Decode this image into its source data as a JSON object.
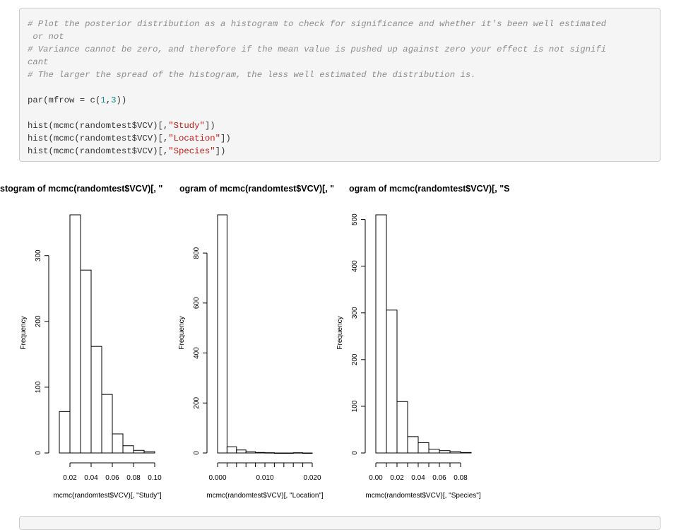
{
  "code": {
    "comment1a": "# Plot the posterior distribution as a histogram to check for significance and whether it's been well estimated",
    "comment1b": " or not",
    "comment2a": "# Variance cannot be zero, and therefore if the mean value is pushed up against zero your effect is not signifi",
    "comment2b": "cant",
    "comment3": "# The larger the spread of the histogram, the less well estimated the distribution is.",
    "par_prefix": "par(mfrow = c(",
    "par_num1": "1",
    "par_comma": ",",
    "par_num2": "3",
    "par_suffix": "))",
    "hist_prefix": "hist(mcmc(randomtest$VCV)[,",
    "hist_suffix": "])",
    "hist_args": [
      "\"Study\"",
      "\"Location\"",
      "\"Species\""
    ]
  },
  "chart_data": [
    {
      "type": "bar",
      "title_visible": "stogram of mcmc(randomtest$VCV)[, \"",
      "xlabel": "mcmc(randomtest$VCV)[, \"Study\"]",
      "ylabel": "Frequency",
      "bin_edges": [
        0.01,
        0.02,
        0.03,
        0.04,
        0.05,
        0.06,
        0.07,
        0.08,
        0.09,
        0.1
      ],
      "values": [
        63,
        362,
        278,
        162,
        89,
        29,
        11,
        4,
        2
      ],
      "xticks": [
        0.02,
        0.04,
        0.06,
        0.08,
        0.1
      ],
      "xtick_labels": [
        "0.02",
        "0.04",
        "0.06",
        "0.08",
        "0.10"
      ],
      "yticks": [
        0,
        100,
        200,
        300
      ],
      "ytick_labels": [
        "0",
        "100",
        "200",
        "300"
      ],
      "ylim": [
        0,
        362
      ]
    },
    {
      "type": "bar",
      "title_visible": "ogram of mcmc(randomtest$VCV)[, \"L",
      "xlabel": "mcmc(randomtest$VCV)[, \"Location\"]",
      "ylabel": "Frequency",
      "bin_edges": [
        0.0,
        0.002,
        0.004,
        0.006,
        0.008,
        0.01,
        0.012,
        0.014,
        0.016,
        0.018,
        0.02
      ],
      "values": [
        953,
        25,
        12,
        5,
        2,
        1,
        0,
        0,
        1,
        0
      ],
      "xticks": [
        0.0,
        0.002,
        0.004,
        0.006,
        0.008,
        0.01,
        0.012,
        0.014,
        0.016,
        0.018,
        0.02
      ],
      "xtick_labels": [
        "0.000",
        "",
        "",
        "",
        "",
        "0.010",
        "",
        "",
        "",
        "",
        "0.020"
      ],
      "yticks": [
        0,
        200,
        400,
        600,
        800
      ],
      "ytick_labels": [
        "0",
        "200",
        "400",
        "600",
        "800"
      ],
      "ylim": [
        0,
        953
      ]
    },
    {
      "type": "bar",
      "title_visible": "ogram of mcmc(randomtest$VCV)[, \"S",
      "xlabel": "mcmc(randomtest$VCV)[, \"Species\"]",
      "ylabel": "Frequency",
      "bin_edges": [
        0.0,
        0.01,
        0.02,
        0.03,
        0.04,
        0.05,
        0.06,
        0.07,
        0.08,
        0.09
      ],
      "values": [
        510,
        306,
        110,
        35,
        22,
        8,
        5,
        3,
        1
      ],
      "xticks": [
        0.0,
        0.01,
        0.02,
        0.03,
        0.04,
        0.05,
        0.06,
        0.07,
        0.08
      ],
      "xtick_labels": [
        "0.00",
        "",
        "0.02",
        "",
        "0.04",
        "",
        "0.06",
        "",
        "0.08"
      ],
      "yticks": [
        0,
        100,
        200,
        300,
        400,
        500
      ],
      "ytick_labels": [
        "0",
        "100",
        "200",
        "300",
        "400",
        "500"
      ],
      "ylim": [
        0,
        510
      ]
    }
  ]
}
